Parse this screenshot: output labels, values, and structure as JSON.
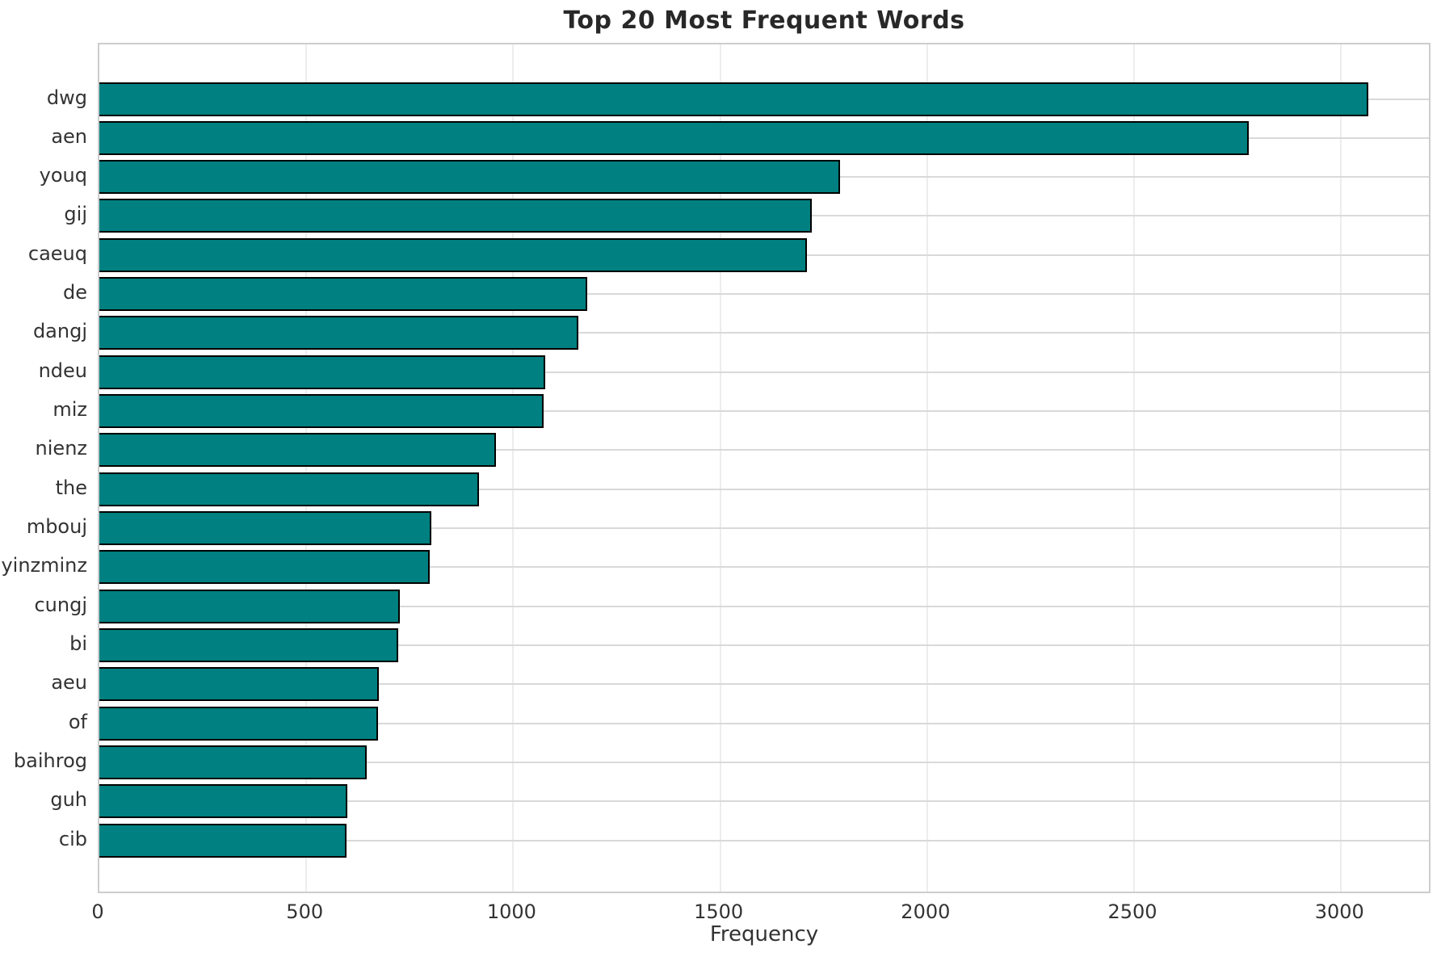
{
  "chart_data": {
    "type": "bar",
    "orientation": "horizontal",
    "title": "Top 20 Most Frequent Words",
    "xlabel": "Frequency",
    "ylabel": "",
    "categories": [
      "dwg",
      "aen",
      "youq",
      "gij",
      "caeuq",
      "de",
      "dangj",
      "ndeu",
      "miz",
      "nienz",
      "the",
      "mbouj",
      "yinzminz",
      "cungj",
      "bi",
      "aeu",
      "of",
      "baihrog",
      "guh",
      "cib"
    ],
    "values": [
      3066,
      2777,
      1790,
      1721,
      1709,
      1178,
      1158,
      1078,
      1073,
      959,
      918,
      803,
      799,
      725,
      722,
      676,
      673,
      645,
      600,
      598
    ],
    "x_ticks": [
      0,
      500,
      1000,
      1500,
      2000,
      2500,
      3000
    ],
    "xlim": [
      0,
      3220
    ],
    "grid": true,
    "legend": false,
    "bar_color": "#008080",
    "bar_edge_color": "#000000",
    "background_color": "#ffffff"
  }
}
